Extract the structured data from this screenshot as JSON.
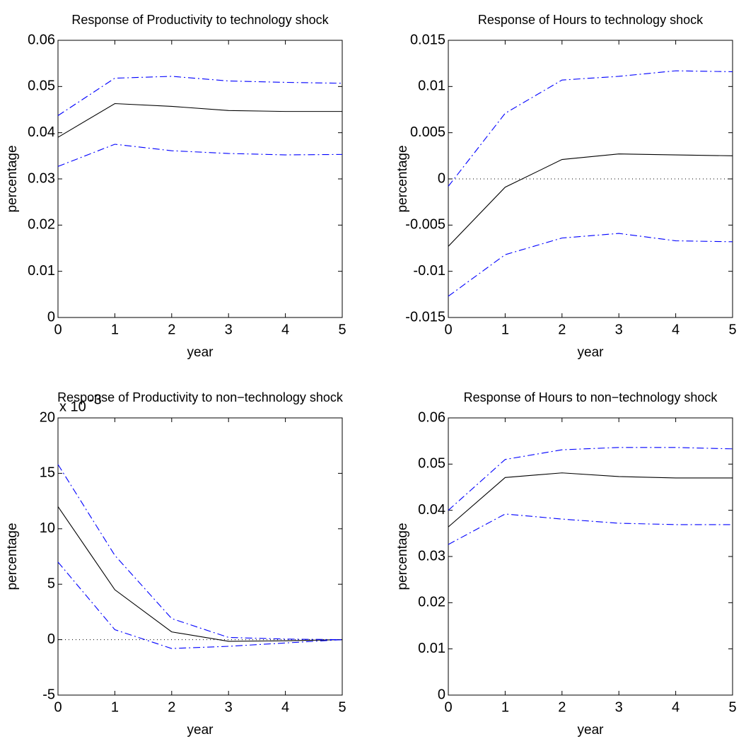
{
  "chart_data": [
    {
      "type": "line",
      "title": "Response of Productivity to technology shock",
      "xlabel": "year",
      "ylabel": "percentage",
      "x": [
        0,
        1,
        2,
        3,
        4,
        5
      ],
      "xlim": [
        0,
        5
      ],
      "xticks": [
        0,
        1,
        2,
        3,
        4,
        5
      ],
      "ylim": [
        0,
        0.06
      ],
      "yticks": [
        0,
        0.01,
        0.02,
        0.03,
        0.04,
        0.05,
        0.06
      ],
      "series": [
        {
          "color": "#000000",
          "style": "solid",
          "values": [
            0.039,
            0.0463,
            0.0457,
            0.0448,
            0.0446,
            0.0446
          ]
        },
        {
          "color": "#0000ff",
          "style": "dashdot",
          "values": [
            0.0437,
            0.0518,
            0.0522,
            0.0512,
            0.0509,
            0.0507
          ]
        },
        {
          "color": "#0000ff",
          "style": "dashdot",
          "values": [
            0.0327,
            0.0375,
            0.0361,
            0.0355,
            0.0352,
            0.0353
          ]
        }
      ]
    },
    {
      "type": "line",
      "title": "Response of Hours to technology shock",
      "xlabel": "year",
      "ylabel": "percentage",
      "x": [
        0,
        1,
        2,
        3,
        4,
        5
      ],
      "xlim": [
        0,
        5
      ],
      "xticks": [
        0,
        1,
        2,
        3,
        4,
        5
      ],
      "ylim": [
        -0.015,
        0.015
      ],
      "yticks": [
        -0.015,
        -0.01,
        -0.005,
        0,
        0.005,
        0.01,
        0.015
      ],
      "hline": 0,
      "series": [
        {
          "color": "#000000",
          "style": "solid",
          "values": [
            -0.0073,
            -0.0009,
            0.0021,
            0.0027,
            0.0026,
            0.0025
          ]
        },
        {
          "color": "#0000ff",
          "style": "dashdot",
          "values": [
            -0.0008,
            0.0071,
            0.0107,
            0.0111,
            0.0117,
            0.0116
          ]
        },
        {
          "color": "#0000ff",
          "style": "dashdot",
          "values": [
            -0.0127,
            -0.0082,
            -0.0064,
            -0.0059,
            -0.0067,
            -0.0068
          ]
        }
      ]
    },
    {
      "type": "line",
      "title": "Response of Productivity to non−technology shock",
      "xlabel": "year",
      "ylabel": "percentage",
      "scale_label": "x 10",
      "scale_exponent": "-3",
      "x": [
        0,
        1,
        2,
        3,
        4,
        5
      ],
      "xlim": [
        0,
        5
      ],
      "xticks": [
        0,
        1,
        2,
        3,
        4,
        5
      ],
      "ylim": [
        -5,
        20
      ],
      "yticks": [
        -5,
        0,
        5,
        10,
        15,
        20
      ],
      "hline": 0,
      "series": [
        {
          "color": "#000000",
          "style": "solid",
          "values": [
            12.0,
            4.5,
            0.7,
            -0.15,
            -0.1,
            0
          ]
        },
        {
          "color": "#0000ff",
          "style": "dashdot",
          "values": [
            15.8,
            7.6,
            1.9,
            0.2,
            0.05,
            0
          ]
        },
        {
          "color": "#0000ff",
          "style": "dashdot",
          "values": [
            7.0,
            0.9,
            -0.8,
            -0.6,
            -0.3,
            0
          ]
        }
      ]
    },
    {
      "type": "line",
      "title": "Response of Hours to non−technology shock",
      "xlabel": "year",
      "ylabel": "percentage",
      "x": [
        0,
        1,
        2,
        3,
        4,
        5
      ],
      "xlim": [
        0,
        5
      ],
      "xticks": [
        0,
        1,
        2,
        3,
        4,
        5
      ],
      "ylim": [
        0,
        0.06
      ],
      "yticks": [
        0,
        0.01,
        0.02,
        0.03,
        0.04,
        0.05,
        0.06
      ],
      "series": [
        {
          "color": "#000000",
          "style": "solid",
          "values": [
            0.0364,
            0.0471,
            0.0481,
            0.0473,
            0.047,
            0.047
          ]
        },
        {
          "color": "#0000ff",
          "style": "dashdot",
          "values": [
            0.04,
            0.051,
            0.0531,
            0.0536,
            0.0536,
            0.0533
          ]
        },
        {
          "color": "#0000ff",
          "style": "dashdot",
          "values": [
            0.0326,
            0.0392,
            0.0381,
            0.0372,
            0.0369,
            0.0369
          ]
        }
      ]
    }
  ]
}
